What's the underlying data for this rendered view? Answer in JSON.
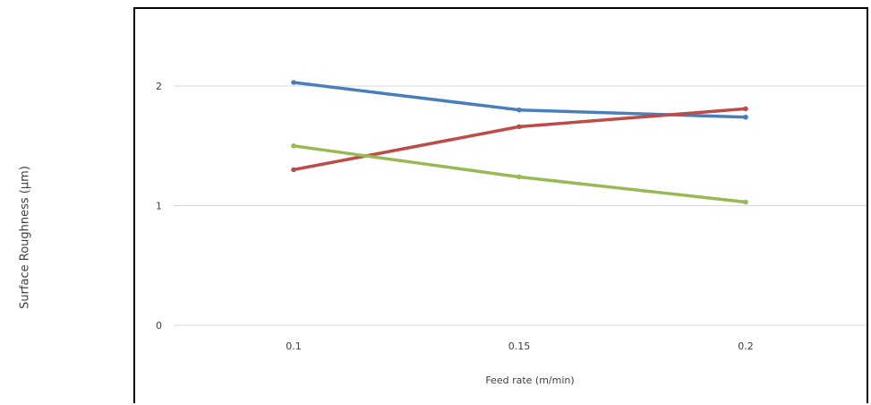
{
  "chart_data": {
    "type": "line",
    "title": "",
    "xlabel": "Feed rate (m/min)",
    "ylabel": "Surface Roughness (µm)",
    "x": [
      0.1,
      0.15,
      0.2
    ],
    "x_tick_labels": [
      "0.1",
      "0.15",
      "0.2"
    ],
    "ylim": [
      0,
      2.5
    ],
    "y_ticks": [
      0,
      1,
      2
    ],
    "y_tick_labels": [
      "0",
      "1",
      "2"
    ],
    "grid": "horizontal",
    "legend": "none",
    "series": [
      {
        "color": "#4a7ebb",
        "values": [
          2.03,
          1.8,
          1.74
        ]
      },
      {
        "color": "#be4b48",
        "values": [
          1.3,
          1.66,
          1.81
        ]
      },
      {
        "color": "#98b954",
        "values": [
          1.5,
          1.24,
          1.03
        ]
      }
    ]
  }
}
